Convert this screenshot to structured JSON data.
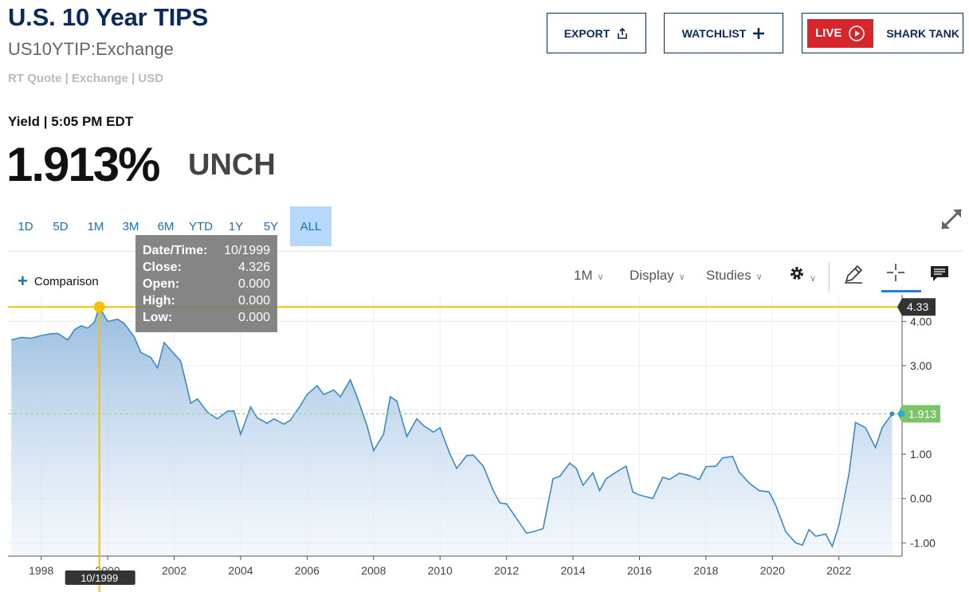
{
  "header": {
    "title": "U.S. 10 Year TIPS",
    "symbol": "US10YTIP:Exchange",
    "quote_meta": "RT Quote | Exchange | USD",
    "yield_line": "Yield | 5:05 PM EDT",
    "price": "1.913%",
    "change": "UNCH"
  },
  "actions": {
    "export_label": "EXPORT",
    "watchlist_label": "WATCHLIST",
    "live_label": "LIVE",
    "shark_tank_label": "SHARK TANK"
  },
  "range_tabs": [
    "1D",
    "5D",
    "1M",
    "3M",
    "6M",
    "YTD",
    "1Y",
    "5Y",
    "ALL"
  ],
  "active_range": "ALL",
  "toolbar": {
    "comparison_label": "Comparison",
    "interval_label": "1M",
    "display_label": "Display",
    "studies_label": "Studies"
  },
  "tooltip": {
    "rows": [
      {
        "k": "Date/Time:",
        "v": "10/1999"
      },
      {
        "k": "Close:",
        "v": "4.326"
      },
      {
        "k": "Open:",
        "v": "0.000"
      },
      {
        "k": "High:",
        "v": "0.000"
      },
      {
        "k": "Low:",
        "v": "0.000"
      }
    ]
  },
  "colors": {
    "brand": "#0b2a5b",
    "accent": "#1a6fb5",
    "line": "#3d8ac4",
    "crosshair": "#f5c000",
    "current_badge": "#7cc36b",
    "live_red": "#d7262b"
  },
  "chart_data": {
    "type": "area",
    "xlim": [
      1997.0,
      2023.9
    ],
    "ylim": [
      -1.3,
      4.6
    ],
    "yticks": [
      4.0,
      3.0,
      2.0,
      1.0,
      0.0,
      -1.0
    ],
    "ytick_labels": [
      "4.00",
      "3.00",
      "",
      "1.00",
      "0.00",
      "-1.00"
    ],
    "xticks": [
      1998,
      2000,
      2002,
      2004,
      2006,
      2008,
      2010,
      2012,
      2014,
      2016,
      2018,
      2020,
      2022
    ],
    "xtick_labels": [
      "1998",
      "2000",
      "2002",
      "2004",
      "2006",
      "2008",
      "2010",
      "2012",
      "2014",
      "2016",
      "2018",
      "2020",
      "2022"
    ],
    "crosshair": {
      "x": 1999.75,
      "y": 4.326,
      "x_label": "10/1999",
      "y_label": "4.33"
    },
    "current": {
      "y": 1.913,
      "label": "1.913"
    },
    "grid": true,
    "series": [
      {
        "points": [
          [
            1997.1,
            3.58
          ],
          [
            1997.4,
            3.64
          ],
          [
            1997.7,
            3.62
          ],
          [
            1998.0,
            3.68
          ],
          [
            1998.3,
            3.72
          ],
          [
            1998.5,
            3.73
          ],
          [
            1998.8,
            3.58
          ],
          [
            1999.0,
            3.81
          ],
          [
            1999.2,
            3.9
          ],
          [
            1999.4,
            3.85
          ],
          [
            1999.6,
            3.98
          ],
          [
            1999.75,
            4.326
          ],
          [
            2000.0,
            4.0
          ],
          [
            2000.3,
            4.05
          ],
          [
            2000.5,
            3.95
          ],
          [
            2000.8,
            3.65
          ],
          [
            2001.0,
            3.3
          ],
          [
            2001.3,
            3.18
          ],
          [
            2001.5,
            2.95
          ],
          [
            2001.7,
            3.52
          ],
          [
            2001.9,
            3.35
          ],
          [
            2002.2,
            3.1
          ],
          [
            2002.5,
            2.15
          ],
          [
            2002.7,
            2.25
          ],
          [
            2003.0,
            1.95
          ],
          [
            2003.3,
            1.8
          ],
          [
            2003.6,
            1.97
          ],
          [
            2003.8,
            1.98
          ],
          [
            2004.0,
            1.45
          ],
          [
            2004.3,
            2.07
          ],
          [
            2004.5,
            1.82
          ],
          [
            2004.8,
            1.7
          ],
          [
            2005.0,
            1.8
          ],
          [
            2005.3,
            1.68
          ],
          [
            2005.5,
            1.77
          ],
          [
            2005.8,
            2.1
          ],
          [
            2006.0,
            2.35
          ],
          [
            2006.3,
            2.55
          ],
          [
            2006.5,
            2.35
          ],
          [
            2006.8,
            2.45
          ],
          [
            2007.0,
            2.3
          ],
          [
            2007.3,
            2.68
          ],
          [
            2007.5,
            2.3
          ],
          [
            2007.8,
            1.65
          ],
          [
            2008.0,
            1.08
          ],
          [
            2008.3,
            1.45
          ],
          [
            2008.5,
            2.3
          ],
          [
            2008.7,
            2.2
          ],
          [
            2009.0,
            1.4
          ],
          [
            2009.3,
            1.8
          ],
          [
            2009.5,
            1.65
          ],
          [
            2009.8,
            1.5
          ],
          [
            2010.0,
            1.6
          ],
          [
            2010.3,
            1.0
          ],
          [
            2010.5,
            0.68
          ],
          [
            2010.8,
            0.97
          ],
          [
            2011.0,
            0.98
          ],
          [
            2011.3,
            0.73
          ],
          [
            2011.6,
            0.18
          ],
          [
            2011.8,
            -0.1
          ],
          [
            2012.0,
            -0.12
          ],
          [
            2012.3,
            -0.45
          ],
          [
            2012.6,
            -0.78
          ],
          [
            2012.8,
            -0.75
          ],
          [
            2013.1,
            -0.68
          ],
          [
            2013.4,
            0.45
          ],
          [
            2013.6,
            0.5
          ],
          [
            2013.9,
            0.8
          ],
          [
            2014.1,
            0.68
          ],
          [
            2014.3,
            0.3
          ],
          [
            2014.6,
            0.58
          ],
          [
            2014.8,
            0.18
          ],
          [
            2015.0,
            0.45
          ],
          [
            2015.3,
            0.6
          ],
          [
            2015.6,
            0.73
          ],
          [
            2015.8,
            0.15
          ],
          [
            2016.0,
            0.08
          ],
          [
            2016.4,
            0.0
          ],
          [
            2016.7,
            0.48
          ],
          [
            2016.9,
            0.43
          ],
          [
            2017.2,
            0.57
          ],
          [
            2017.5,
            0.52
          ],
          [
            2017.8,
            0.43
          ],
          [
            2018.0,
            0.72
          ],
          [
            2018.3,
            0.73
          ],
          [
            2018.5,
            0.92
          ],
          [
            2018.8,
            0.95
          ],
          [
            2019.0,
            0.6
          ],
          [
            2019.3,
            0.35
          ],
          [
            2019.6,
            0.18
          ],
          [
            2019.9,
            0.15
          ],
          [
            2020.1,
            -0.15
          ],
          [
            2020.4,
            -0.75
          ],
          [
            2020.7,
            -1.0
          ],
          [
            2020.9,
            -1.05
          ],
          [
            2021.1,
            -0.7
          ],
          [
            2021.3,
            -0.85
          ],
          [
            2021.6,
            -0.8
          ],
          [
            2021.8,
            -1.08
          ],
          [
            2022.0,
            -0.6
          ],
          [
            2022.3,
            0.55
          ],
          [
            2022.5,
            1.72
          ],
          [
            2022.8,
            1.6
          ],
          [
            2023.1,
            1.15
          ],
          [
            2023.3,
            1.6
          ],
          [
            2023.6,
            1.913
          ]
        ]
      }
    ]
  }
}
